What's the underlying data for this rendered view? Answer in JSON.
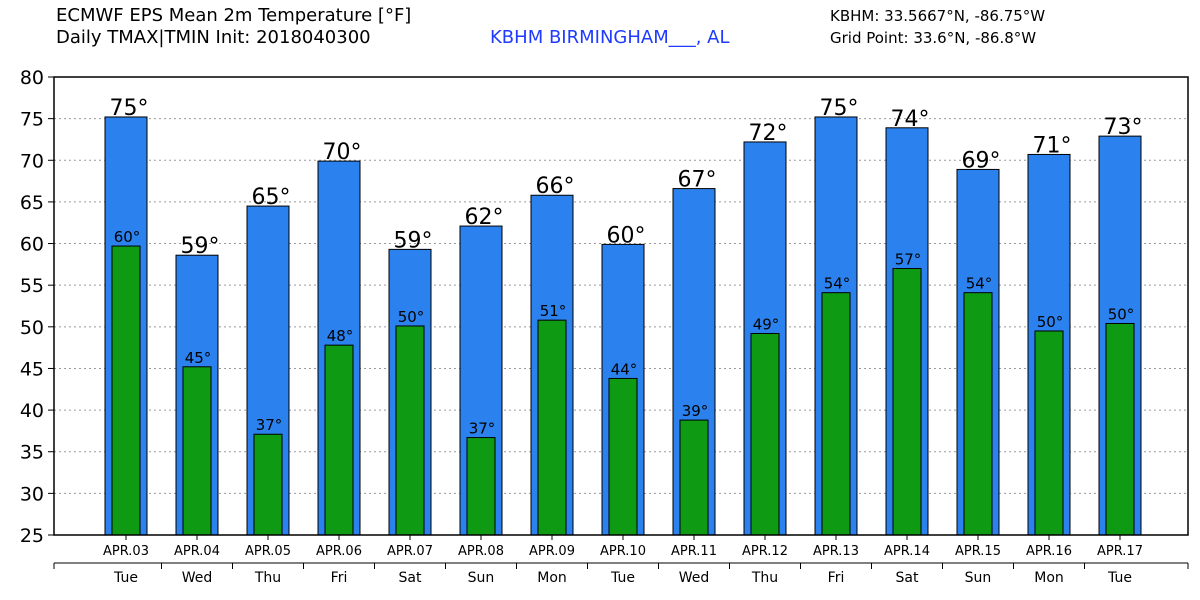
{
  "header": {
    "title_line1": "ECMWF EPS Mean 2m Temperature [°F]",
    "title_line2": "Daily TMAX|TMIN Init: 2018040300",
    "station": "KBHM BIRMINGHAM___, AL",
    "coords_station": "KBHM: 33.5667°N, -86.75°W",
    "coords_grid": "Grid Point: 33.6°N, -86.8°W"
  },
  "colors": {
    "tmax_bar": "#2b82ee",
    "tmin_bar": "#0f9a14",
    "grid": "#9a9a9a",
    "station_text": "#1f3bff"
  },
  "chart_data": {
    "type": "bar",
    "categories": [
      "APR.03",
      "APR.04",
      "APR.05",
      "APR.06",
      "APR.07",
      "APR.08",
      "APR.09",
      "APR.10",
      "APR.11",
      "APR.12",
      "APR.13",
      "APR.14",
      "APR.15",
      "APR.16",
      "APR.17"
    ],
    "weekdays": [
      "Tue",
      "Wed",
      "Thu",
      "Fri",
      "Sat",
      "Sun",
      "Mon",
      "Tue",
      "Wed",
      "Thu",
      "Fri",
      "Sat",
      "Sun",
      "Mon",
      "Tue"
    ],
    "series": [
      {
        "values": [
          75.2,
          58.6,
          64.5,
          69.9,
          59.3,
          62.1,
          65.8,
          59.9,
          66.6,
          72.2,
          75.2,
          73.9,
          68.9,
          70.7,
          72.9
        ],
        "labels": [
          "75°",
          "59°",
          "65°",
          "70°",
          "59°",
          "62°",
          "66°",
          "60°",
          "67°",
          "72°",
          "75°",
          "74°",
          "69°",
          "71°",
          "73°"
        ]
      },
      {
        "values": [
          59.7,
          45.2,
          37.1,
          47.8,
          50.1,
          36.7,
          50.8,
          43.8,
          38.8,
          49.2,
          54.1,
          57.0,
          54.1,
          49.5,
          50.4
        ],
        "labels": [
          "60°",
          "45°",
          "37°",
          "48°",
          "50°",
          "37°",
          "51°",
          "44°",
          "39°",
          "49°",
          "54°",
          "57°",
          "54°",
          "50°",
          "50°"
        ]
      }
    ],
    "ylim": [
      25,
      80
    ],
    "yticks": [
      25,
      30,
      35,
      40,
      45,
      50,
      55,
      60,
      65,
      70,
      75,
      80
    ],
    "grid": true,
    "xlabel": "",
    "ylabel": ""
  }
}
